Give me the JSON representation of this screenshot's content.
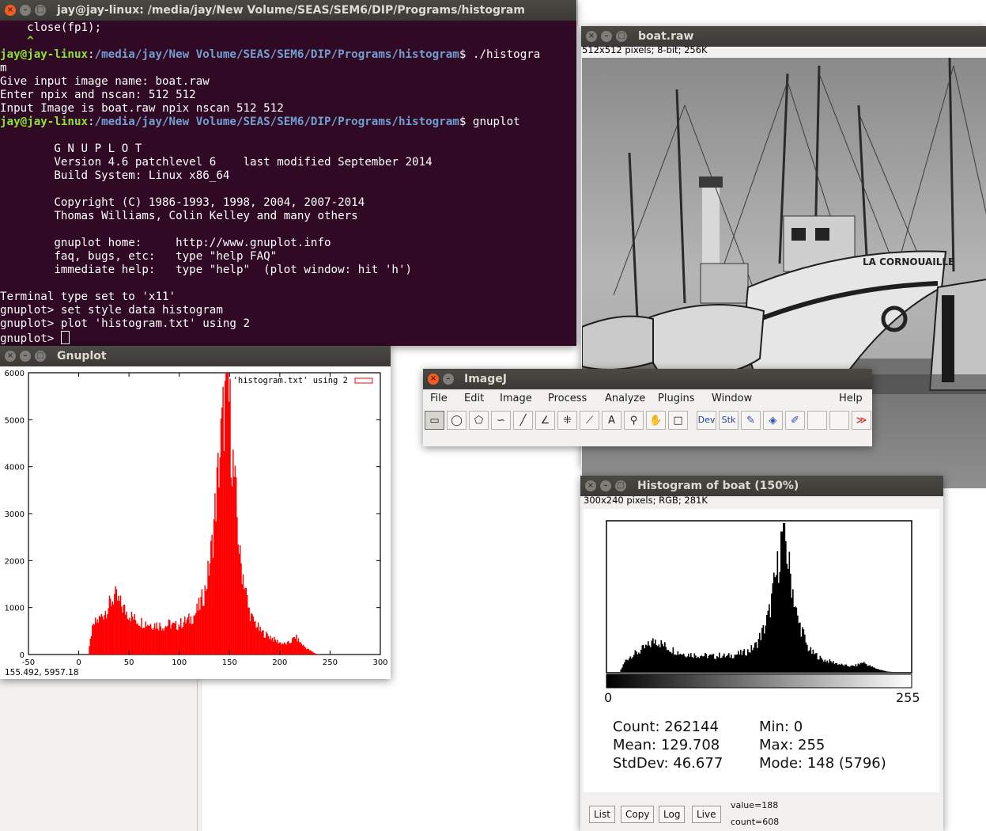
{
  "terminal": {
    "title": "jay@jay-linux: /media/jay/New Volume/SEAS/SEM6/DIP/Programs/histogram",
    "line_close": "    close(fp1);",
    "line_caret": "    ^",
    "prompt_user": "jay@jay-linux",
    "prompt_sep": ":",
    "prompt_path": "/media/jay/New Volume/SEAS/SEM6/DIP/Programs/histogram",
    "cmd1": "$ ./histogra",
    "cmd1_wrap": "m",
    "out1": "Give input image name: boat.raw",
    "out2": "Enter npix and nscan: 512 512",
    "out3": "Input Image is boat.raw npix nscan 512 512",
    "cmd2": "$ gnuplot",
    "banner": [
      "        G N U P L O T",
      "        Version 4.6 patchlevel 6    last modified September 2014",
      "        Build System: Linux x86_64",
      "",
      "        Copyright (C) 1986-1993, 1998, 2004, 2007-2014",
      "        Thomas Williams, Colin Kelley and many others",
      "",
      "        gnuplot home:     http://www.gnuplot.info",
      "        faq, bugs, etc:   type \"help FAQ\"",
      "        immediate help:   type \"help\"  (plot window: hit 'h')"
    ],
    "term_set": "Terminal type set to 'x11'",
    "g1": "gnuplot> set style data histogram",
    "g2": "gnuplot> plot 'histogram.txt' using 2",
    "g3": "gnuplot> "
  },
  "boat": {
    "title": "boat.raw",
    "info": "512x512 pixels; 8-bit; 256K",
    "hull_text": "LA CORNOUAILLE"
  },
  "gnuplot": {
    "title": "Gnuplot",
    "coords": "155.492,  5957.18"
  },
  "imagej": {
    "title": "ImageJ",
    "menus": [
      "File",
      "Edit",
      "Image",
      "Process",
      "Analyze",
      "Plugins",
      "Window",
      "Help"
    ],
    "tool_dev": "Dev",
    "tool_stk": "Stk",
    "tool_more": "≫"
  },
  "histwin": {
    "title": "Histogram of boat (150%)",
    "info": "300x240 pixels; RGB; 281K",
    "axis_min": "0",
    "axis_max": "255",
    "count": "Count: 262144",
    "mean": "Mean: 129.708",
    "stddev": "StdDev: 46.677",
    "min": "Min: 0",
    "max": "Max: 255",
    "mode": "Mode: 148 (5796)",
    "buttons": [
      "List",
      "Copy",
      "Log",
      "Live"
    ],
    "value": "value=188",
    "countv": "count=608"
  },
  "chart_data": [
    {
      "type": "bar",
      "title": "",
      "legend": "'histogram.txt' using 2",
      "legend_position": "top-right",
      "color": "#ff0000",
      "xlim": [
        -50,
        300
      ],
      "ylim": [
        0,
        6000
      ],
      "xticks": [
        "-50",
        "0",
        "50",
        "100",
        "150",
        "200",
        "250",
        "300"
      ],
      "yticks": [
        "0",
        "1000",
        "2000",
        "3000",
        "4000",
        "5000",
        "6000"
      ],
      "x": [
        0,
        5,
        9,
        12,
        15,
        20,
        25,
        30,
        35,
        40,
        45,
        50,
        55,
        60,
        65,
        70,
        75,
        80,
        85,
        90,
        95,
        100,
        105,
        110,
        115,
        120,
        125,
        128,
        132,
        136,
        140,
        144,
        148,
        152,
        156,
        160,
        164,
        168,
        172,
        176,
        180,
        185,
        190,
        195,
        200,
        205,
        210,
        215,
        220,
        225,
        230,
        235,
        240,
        245,
        255
      ],
      "values": [
        0,
        0,
        0,
        450,
        650,
        750,
        900,
        1050,
        1250,
        1100,
        950,
        850,
        750,
        700,
        680,
        650,
        640,
        620,
        600,
        650,
        600,
        650,
        700,
        750,
        850,
        1050,
        1350,
        1700,
        2300,
        3300,
        4300,
        5200,
        5800,
        4300,
        3200,
        2000,
        1600,
        1000,
        750,
        650,
        500,
        430,
        380,
        300,
        250,
        220,
        260,
        380,
        250,
        150,
        80,
        20,
        0,
        0,
        0
      ]
    },
    {
      "type": "bar",
      "title": "Histogram of boat (150%)",
      "color": "#000000",
      "xlim": [
        0,
        255
      ],
      "x": [
        0,
        5,
        10,
        15,
        20,
        25,
        30,
        35,
        40,
        45,
        50,
        55,
        60,
        65,
        70,
        75,
        80,
        85,
        90,
        95,
        100,
        105,
        110,
        115,
        120,
        125,
        128,
        132,
        136,
        140,
        144,
        148,
        152,
        156,
        160,
        164,
        168,
        172,
        176,
        180,
        185,
        190,
        195,
        200,
        205,
        210,
        215,
        220,
        225,
        230,
        235,
        240,
        245,
        255
      ],
      "values": [
        0,
        0,
        0,
        450,
        650,
        750,
        900,
        1050,
        1250,
        1100,
        950,
        850,
        750,
        700,
        680,
        650,
        640,
        620,
        600,
        650,
        600,
        650,
        700,
        750,
        850,
        1050,
        1350,
        1700,
        2300,
        3300,
        4300,
        5796,
        4300,
        3200,
        2000,
        1600,
        1000,
        750,
        650,
        500,
        430,
        380,
        300,
        250,
        220,
        260,
        380,
        250,
        150,
        80,
        20,
        0,
        0,
        0
      ]
    }
  ]
}
